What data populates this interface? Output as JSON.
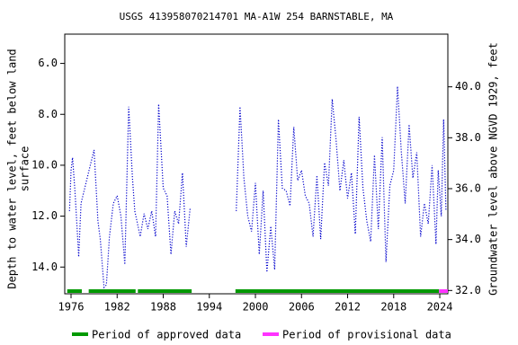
{
  "chart_data": {
    "type": "line",
    "title": "USGS 413958070214701 MA-A1W  254 BARNSTABLE, MA",
    "y_label": [
      "Depth to water level, feet below land",
      "surface"
    ],
    "y2_label": "Groundwater level above NGVD 1929, feet",
    "xlim": [
      1975.18,
      2025.05
    ],
    "xticks": [
      1976,
      1982,
      1988,
      1994,
      2000,
      2006,
      2012,
      2018,
      2024
    ],
    "ylim": [
      15.05,
      4.85
    ],
    "yticks": [
      {
        "value": 6,
        "label": "6.0"
      },
      {
        "value": 8,
        "label": "8.0"
      },
      {
        "value": 10,
        "label": "10.0"
      },
      {
        "value": 12,
        "label": "12.0"
      },
      {
        "value": 14,
        "label": "14.0"
      }
    ],
    "y2lim": [
      31.87,
      42.07
    ],
    "y2ticks": [
      {
        "value": 32,
        "label": "32.0"
      },
      {
        "value": 34,
        "label": "34.0"
      },
      {
        "value": 36,
        "label": "36.0"
      },
      {
        "value": 38,
        "label": "38.0"
      },
      {
        "value": 40,
        "label": "40.0"
      }
    ],
    "series": [
      {
        "name": "Depth to water level",
        "color": "#0000cc",
        "x": [
          1975.8,
          1976.0,
          1976.2,
          1976.5,
          1976.8,
          1977.0,
          1977.3,
          1978.5,
          1979.0,
          1979.5,
          1979.8,
          1980.3,
          1980.6,
          1981.0,
          1981.5,
          1982.0,
          1982.5,
          1983.0,
          1983.5,
          1984.0,
          1984.3,
          1985.0,
          1985.5,
          1986.0,
          1986.5,
          1987.0,
          1987.4,
          1988.0,
          1988.5,
          1989.0,
          1989.5,
          1990.0,
          1990.5,
          1991.0,
          1991.5,
          1994.0,
          1997.5,
          1998.0,
          1998.5,
          1999.0,
          1999.5,
          2000.0,
          2000.5,
          2001.0,
          2001.5,
          2002.0,
          2002.5,
          2003.0,
          2003.5,
          2004.0,
          2004.5,
          2005.0,
          2005.5,
          2006.0,
          2006.5,
          2007.0,
          2007.5,
          2008.0,
          2008.5,
          2009.0,
          2009.5,
          2010.0,
          2010.5,
          2011.0,
          2011.5,
          2012.0,
          2012.5,
          2013.0,
          2013.5,
          2014.0,
          2014.5,
          2015.0,
          2015.5,
          2016.0,
          2016.5,
          2017.0,
          2017.5,
          2018.0,
          2018.5,
          2019.0,
          2019.5,
          2020.0,
          2020.5,
          2021.0,
          2021.5,
          2022.0,
          2022.5,
          2023.0,
          2023.5,
          2023.8,
          2024.2,
          2024.5,
          2024.8
        ],
        "values": [
          11.8,
          10.2,
          9.7,
          11.0,
          12.5,
          13.6,
          11.5,
          10.0,
          9.4,
          12.2,
          12.9,
          14.8,
          14.7,
          12.8,
          11.5,
          11.2,
          12.0,
          13.9,
          7.7,
          10.5,
          11.8,
          12.8,
          11.9,
          12.5,
          11.8,
          12.8,
          7.6,
          10.9,
          11.2,
          13.5,
          11.8,
          12.3,
          10.3,
          13.2,
          11.7,
          null,
          11.8,
          7.7,
          10.5,
          12.0,
          12.6,
          10.7,
          13.5,
          11.0,
          14.2,
          12.4,
          14.1,
          8.2,
          10.9,
          11.0,
          11.6,
          8.5,
          10.6,
          10.2,
          11.2,
          11.5,
          12.8,
          10.4,
          12.9,
          9.9,
          10.8,
          7.4,
          9.0,
          11.0,
          9.8,
          11.3,
          10.3,
          12.7,
          8.1,
          10.9,
          12.2,
          13.0,
          9.6,
          12.5,
          8.9,
          13.8,
          10.8,
          10.2,
          6.9,
          9.5,
          11.5,
          8.4,
          10.5,
          9.5,
          12.8,
          11.5,
          12.3,
          10.0,
          13.1,
          10.2,
          12.0,
          8.2,
          11.8
        ]
      }
    ],
    "periods": [
      {
        "name": "Period of approved data",
        "color": "#009900",
        "ranges": [
          [
            1975.5,
            1977.4
          ],
          [
            1978.3,
            1984.4
          ],
          [
            1984.7,
            1991.7
          ],
          [
            1997.4,
            2023.9
          ]
        ]
      },
      {
        "name": "Period of provisional data",
        "color": "#ff33ff",
        "ranges": [
          [
            2023.9,
            2025.05
          ]
        ]
      }
    ]
  }
}
